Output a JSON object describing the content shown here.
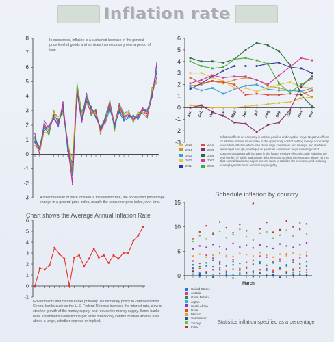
{
  "header": {
    "title": "Inflation rate"
  },
  "texts": {
    "intro": "In economics, inflation is a sustained increase in the general price level of goods and services in an economy over a period of time",
    "chief": "A chief measure of price inflation is the inflation rate, the annualized percentage change in a general price index, usually the consumer price index, over time.",
    "affects": "Inflation affects an economy in various positive and negative ways. Negative effects of inflation include an increase in the opportunity cost of holding money, uncertainty over future inflation which may discourage investment and savings, and if inflation were rapid enough, shortages of goods as consumers begin hoarding out of concern that prices will increase in the future. Positive effects include reducing the real burden of public and private debt, keeping nominal interest rates above zero so that central banks can adjust interest rates to stabilize the economy, and reducing unemployment due to nominal wage rigidity",
    "government": "Governments and central banks primarily use monetary policy to control inflation. Central banks such as the U.S. Federal Reserve increase the interest rate, slow or stop the growth of the money supply, and reduce the money supply. Some banks have a symmetrical inflation target while others only control inflation when it rises above a target, whether express or implied.",
    "avg_title": "Chart shows the Average Annual Inflation Rate",
    "schedule_title": "Schedule inflation by country",
    "stats_caption": "Statistics inflation specified as a percentage"
  },
  "chart_data": [
    {
      "type": "line",
      "ylim": [
        -3,
        8
      ],
      "yticks": [
        "8",
        "7",
        "6",
        "5",
        "4",
        "3",
        "2",
        "1",
        "0",
        "-1",
        "-2",
        "-3"
      ],
      "x": [
        1,
        2,
        3,
        4,
        5,
        6,
        7,
        8,
        9,
        10,
        11,
        12,
        13,
        14,
        15,
        16,
        17,
        18,
        19,
        20,
        21,
        22,
        23,
        24,
        25,
        26,
        27
      ],
      "series": [
        {
          "color": "#e23b3b",
          "values": [
            1.2,
            0.3,
            2.1,
            1.6,
            2.8,
            2.2,
            3.1,
            0.6,
            -1.2,
            4.6,
            2.6,
            4.0,
            3.0,
            2.8,
            1.6,
            2.3,
            3.4,
            1.8,
            3.2,
            2.6,
            2.8,
            2.4,
            2.7,
            3.1,
            2.8,
            4.3,
            5.6
          ]
        },
        {
          "color": "#2d6bd6",
          "values": [
            0.8,
            0.1,
            1.6,
            2.0,
            2.5,
            1.9,
            3.4,
            0.2,
            -0.6,
            4.2,
            2.2,
            3.6,
            3.3,
            2.5,
            1.9,
            2.1,
            3.1,
            2.0,
            2.9,
            2.3,
            2.5,
            2.7,
            2.4,
            3.0,
            3.1,
            3.9,
            6.1
          ]
        },
        {
          "color": "#3aaa3a",
          "values": [
            1.0,
            0.4,
            1.9,
            1.3,
            3.0,
            2.4,
            2.8,
            0.9,
            -0.9,
            4.9,
            2.9,
            3.8,
            2.7,
            3.1,
            1.4,
            2.6,
            3.7,
            1.6,
            3.5,
            2.8,
            3.0,
            2.2,
            2.9,
            2.8,
            2.5,
            4.6,
            4.9
          ]
        },
        {
          "color": "#8e44ad",
          "values": [
            1.4,
            0.0,
            2.3,
            1.8,
            2.6,
            2.0,
            3.6,
            0.4,
            -1.9,
            4.4,
            2.4,
            4.2,
            3.1,
            2.9,
            1.7,
            2.4,
            3.2,
            1.9,
            3.0,
            2.5,
            2.7,
            2.5,
            2.6,
            3.2,
            2.9,
            4.1,
            5.3
          ]
        },
        {
          "color": "#f0a020",
          "values": [
            0.6,
            0.2,
            1.5,
            1.5,
            2.9,
            2.6,
            2.9,
            0.7,
            -0.3,
            4.7,
            2.7,
            3.5,
            2.9,
            2.7,
            1.5,
            2.2,
            3.5,
            1.7,
            3.3,
            2.7,
            2.9,
            2.3,
            2.8,
            2.9,
            2.7,
            4.4,
            5.0
          ]
        },
        {
          "color": "#1a8a8a",
          "values": [
            1.1,
            0.5,
            2.0,
            1.4,
            2.7,
            2.3,
            3.0,
            0.5,
            -1.5,
            4.5,
            2.5,
            3.9,
            3.2,
            2.6,
            1.8,
            2.5,
            3.3,
            1.8,
            3.1,
            2.4,
            2.6,
            2.6,
            2.5,
            3.0,
            3.0,
            4.2,
            5.7
          ]
        },
        {
          "color": "#cc2a8a",
          "values": [
            0.9,
            0.3,
            1.8,
            1.9,
            2.4,
            2.1,
            3.3,
            0.8,
            -2.1,
            4.3,
            2.3,
            3.7,
            2.8,
            3.0,
            1.6,
            2.3,
            3.6,
            2.1,
            3.4,
            2.6,
            2.8,
            2.4,
            2.6,
            3.1,
            2.6,
            4.0,
            6.3
          ]
        }
      ]
    },
    {
      "type": "line",
      "categories": [
        "Jan",
        "Feb",
        "Mar",
        "Apr",
        "May",
        "Jun",
        "Jul",
        "Aug",
        "Sep",
        "Oct",
        "Nov",
        "Dec"
      ],
      "ylim": [
        -3,
        6
      ],
      "yticks": [
        "6",
        "5",
        "4",
        "3",
        "2",
        "1",
        "0",
        "-1",
        "-2",
        "-3"
      ],
      "series": [
        {
          "name": "2015",
          "color": "#e8b83a",
          "values": [
            0.2,
            0.1,
            0.0,
            0.0,
            0.0,
            0.1,
            0.2,
            0.3,
            0.4,
            0.5,
            0.8,
            0.9
          ]
        },
        {
          "name": "2014",
          "color": "#c89a2a",
          "values": [
            1.9,
            2.0,
            2.3,
            2.1,
            2.4,
            2.6,
            2.4,
            1.9,
            1.7,
            1.5,
            1.4,
            0.9
          ]
        },
        {
          "name": "2013",
          "color": "#3a9fd6",
          "values": [
            1.8,
            1.5,
            1.7,
            1.2,
            1.6,
            1.9,
            2.0,
            1.6,
            1.5,
            1.5,
            1.4,
            1.7
          ]
        },
        {
          "name": "2012",
          "color": "#e8c53a",
          "values": [
            3.0,
            3.0,
            2.6,
            2.3,
            1.7,
            1.7,
            1.4,
            1.7,
            2.0,
            2.2,
            1.8,
            1.7
          ]
        },
        {
          "name": "2011",
          "color": "#2f3a8f",
          "values": [
            1.6,
            2.1,
            2.7,
            3.2,
            3.6,
            3.6,
            3.6,
            3.8,
            3.9,
            3.5,
            3.4,
            3.0
          ]
        },
        {
          "name": "2010",
          "color": "#e04a3a",
          "values": [
            2.6,
            2.1,
            2.3,
            2.2,
            2.0,
            1.1,
            1.2,
            1.1,
            1.1,
            1.2,
            1.1,
            1.5
          ]
        },
        {
          "name": "2009",
          "color": "#8a2a6a",
          "values": [
            0.0,
            0.2,
            -0.4,
            -0.7,
            -1.3,
            -1.4,
            -2.1,
            -1.5,
            -1.3,
            -0.2,
            1.8,
            2.7
          ]
        },
        {
          "name": "2008",
          "color": "#2a6a3a",
          "values": [
            4.3,
            4.0,
            4.0,
            3.9,
            4.2,
            5.0,
            5.6,
            5.4,
            4.9,
            3.7,
            1.1,
            0.1
          ]
        },
        {
          "name": "2007",
          "color": "#d6359a",
          "values": [
            2.1,
            2.4,
            2.8,
            2.6,
            2.7,
            2.7,
            2.4,
            2.0,
            2.8,
            3.5,
            4.3,
            4.1
          ]
        },
        {
          "name": "2006",
          "color": "#4aa83a",
          "values": [
            4.0,
            3.6,
            3.4,
            3.5,
            4.2,
            4.3,
            4.1,
            3.8,
            2.1,
            1.3,
            2.0,
            2.5
          ]
        }
      ]
    },
    {
      "type": "line",
      "title": "Chart shows the Average Annual Inflation Rate",
      "ylim": [
        -1,
        6
      ],
      "yticks": [
        "6",
        "5",
        "4",
        "3",
        "2",
        "1",
        "0",
        "-1"
      ],
      "x": [
        1,
        2,
        3,
        4,
        5,
        6,
        7,
        8,
        9,
        10,
        11,
        12,
        13,
        14,
        15,
        16,
        17,
        18,
        19,
        20,
        21,
        22,
        23
      ],
      "values": [
        0.0,
        1.6,
        1.5,
        1.9,
        3.5,
        2.9,
        2.5,
        0.0,
        2.6,
        2.8,
        1.8,
        2.5,
        3.4,
        2.6,
        2.8,
        2.1,
        2.8,
        2.5,
        3.0,
        3.0,
        4.1,
        4.6,
        5.4
      ],
      "color": "#e5332a"
    },
    {
      "type": "scatter",
      "title": "Schedule inflation by country",
      "xlabel": "March",
      "ylim": [
        0,
        15
      ],
      "yticks": [
        "15",
        "10",
        "5",
        "0"
      ],
      "categories": [
        "United States",
        "Austria",
        "Great Britain",
        "Japan",
        "South Africa",
        "Israel",
        "Mexico",
        "Switzerland",
        "Turkey",
        "India"
      ],
      "colors": [
        "#2a6fd6",
        "#d63a8a",
        "#2a8a4a",
        "#3ab0d0",
        "#8a3ab0",
        "#e04a2a",
        "#f0a020",
        "#1a5a8a",
        "#6ac04a",
        "#c0302a"
      ],
      "points": [
        [
          1.5,
          0.5,
          2.0,
          1.8,
          1.2,
          0.6,
          2.2,
          1.4,
          0.4,
          0.9,
          2.5,
          1.1,
          0.7,
          1.6,
          2.0,
          1.3,
          0.8,
          1.9
        ],
        [
          3.0,
          2.5,
          4.2,
          3.6,
          2.8,
          3.9,
          3.3,
          4.5,
          2.7,
          3.1,
          4.0,
          3.8,
          2.9,
          3.4,
          4.4,
          3.2,
          3.7,
          4.1
        ],
        [
          2.2,
          1.8,
          2.6,
          3.1,
          2.4,
          2.0,
          2.9,
          2.5,
          1.7,
          2.3,
          2.8,
          2.1,
          2.6,
          3.0,
          2.2,
          2.7,
          2.4,
          2.9
        ],
        [
          0.3,
          -0.2,
          0.5,
          0.1,
          0.4,
          -0.1,
          0.2,
          0.6,
          0.0,
          0.3,
          0.5,
          0.1,
          0.2,
          -0.3,
          0.4,
          0.6,
          0.2,
          0.7
        ],
        [
          5.5,
          6.1,
          5.8,
          6.4,
          6.0,
          5.4,
          6.6,
          5.9,
          6.2,
          5.7,
          6.3,
          6.0,
          5.6,
          6.5,
          6.1,
          5.8,
          6.4,
          6.7
        ],
        [
          1.0,
          1.4,
          0.8,
          1.2,
          1.6,
          0.9,
          1.3,
          1.1,
          1.5,
          0.7,
          1.2,
          1.4,
          1.0,
          1.3,
          0.8,
          1.1,
          1.5,
          1.2
        ],
        [
          4.0,
          4.4,
          3.8,
          4.2,
          4.6,
          4.1,
          3.9,
          4.5,
          4.3,
          4.0,
          4.7,
          4.2,
          3.8,
          4.4,
          4.1,
          4.6,
          4.3,
          4.8
        ],
        [
          0.8,
          0.2,
          0.6,
          -0.3,
          0.4,
          0.1,
          -0.5,
          0.3,
          0.7,
          -0.2,
          0.5,
          0.0,
          0.2,
          -0.4,
          0.6,
          0.1,
          0.3,
          0.2
        ],
        [
          7.0,
          8.2,
          7.5,
          8.8,
          9.1,
          7.8,
          8.4,
          9.5,
          8.0,
          7.3,
          8.7,
          9.0,
          7.6,
          8.3,
          9.3,
          8.1,
          10.8,
          8.6
        ],
        [
          7.5,
          9.0,
          10.2,
          8.5,
          11.0,
          9.8,
          8.8,
          10.5,
          9.2,
          14.8,
          9.6,
          10.9,
          8.9,
          9.4,
          11.2,
          10.0,
          9.5,
          10.6
        ]
      ]
    }
  ]
}
